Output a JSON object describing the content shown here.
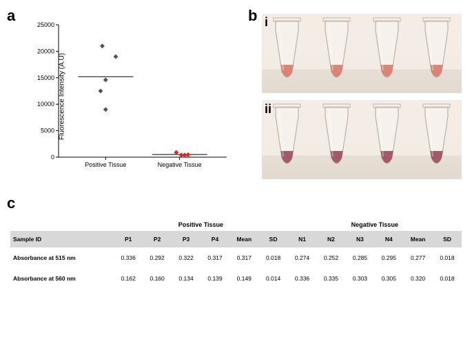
{
  "panel_labels": {
    "a": "a",
    "b": "b",
    "c": "c",
    "b_i": "i",
    "b_ii": "ii"
  },
  "chart": {
    "type": "scatter",
    "y_label": "Fluorescence Intensity (A.U)",
    "ylim": [
      0,
      25000
    ],
    "ytick_step": 5000,
    "yticks": [
      0,
      5000,
      10000,
      15000,
      20000,
      25000
    ],
    "categories": [
      "Positive Tissue",
      "Negative Tissue"
    ],
    "series": [
      {
        "name": "Positive Tissue",
        "x_center": 0.28,
        "marker": "diamond",
        "color": "#555555",
        "mean_line": 15200,
        "points": [
          {
            "dx": -0.02,
            "y": 21000
          },
          {
            "dx": 0.06,
            "y": 19000
          },
          {
            "dx": 0.0,
            "y": 14600
          },
          {
            "dx": -0.03,
            "y": 12500
          },
          {
            "dx": 0.0,
            "y": 9000
          }
        ]
      },
      {
        "name": "Negative Tissue",
        "x_center": 0.72,
        "marker": "diamond",
        "color": "#d9262a",
        "mean_line": 500,
        "points": [
          {
            "dx": -0.02,
            "y": 900
          },
          {
            "dx": 0.01,
            "y": 400
          },
          {
            "dx": 0.03,
            "y": 400
          },
          {
            "dx": 0.05,
            "y": 450
          }
        ]
      }
    ],
    "axis_color": "#000000",
    "tick_fontsize": 9,
    "label_fontsize": 10
  },
  "tubes": {
    "row_i": {
      "liquid_color": "#d47a6a",
      "count": 4
    },
    "row_ii": {
      "liquid_color": "#9a4a5d",
      "count": 4
    },
    "tube_stroke": "#b9b2a8",
    "tube_fill": "rgba(255,255,255,0.25)"
  },
  "table": {
    "group_headers": [
      "Positive Tissue",
      "Negative Tissue"
    ],
    "col_headers": [
      "Sample ID",
      "P1",
      "P2",
      "P3",
      "P4",
      "Mean",
      "SD",
      "N1",
      "N2",
      "N3",
      "N4",
      "Mean",
      "SD"
    ],
    "rows": [
      {
        "label": "Absorbance at 515 nm",
        "values": [
          "0.336",
          "0.292",
          "0.322",
          "0.317",
          "0.317",
          "0.018",
          "0.274",
          "0.252",
          "0.285",
          "0.295",
          "0.277",
          "0.018"
        ]
      },
      {
        "label": "Absorbance at 560 nm",
        "values": [
          "0.162",
          "0.160",
          "0.134",
          "0.139",
          "0.149",
          "0.014",
          "0.336",
          "0.335",
          "0.303",
          "0.305",
          "0.320",
          "0.018"
        ]
      }
    ],
    "header_bg": "#d8d8d8"
  }
}
